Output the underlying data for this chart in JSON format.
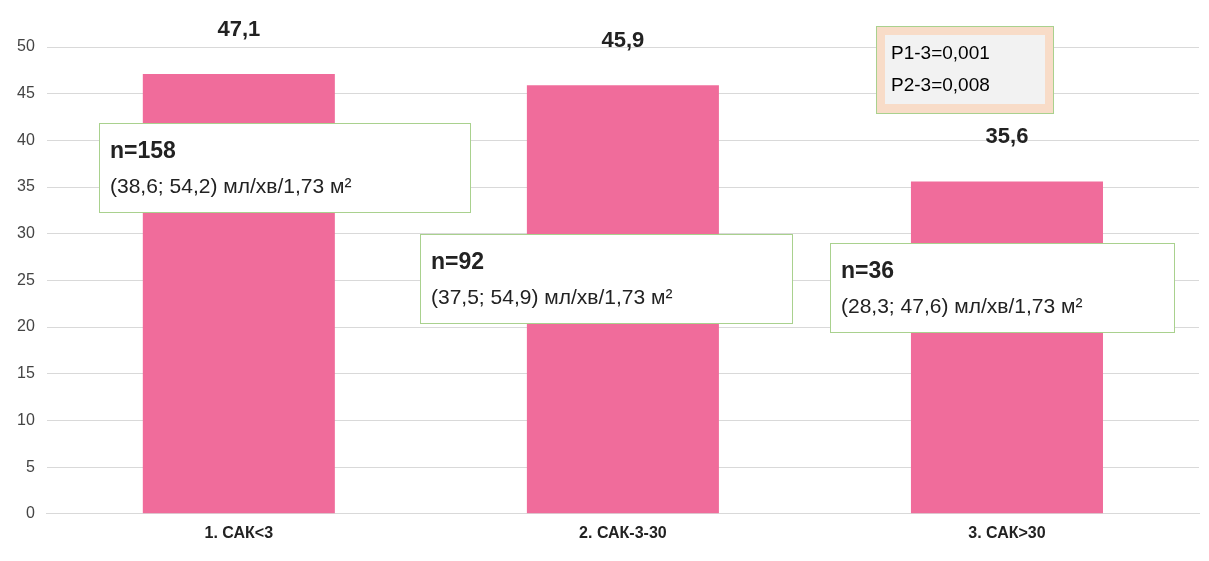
{
  "chart_data": {
    "type": "bar",
    "categories": [
      "1. САК<3",
      "2. САК-3-30",
      "3. САК>30"
    ],
    "values": [
      47.1,
      45.9,
      35.6
    ],
    "value_labels": [
      "47,1",
      "45,9",
      "35,6"
    ],
    "color": "#f06c9b",
    "ylim": [
      0,
      50
    ],
    "yticks": [
      0,
      5,
      10,
      15,
      20,
      25,
      30,
      35,
      40,
      45,
      50
    ],
    "grid": "y",
    "legend": false,
    "annotations": [
      "n=158\n(38,6; 54,2) мл/хв/1,73 м²",
      "n=92\n(37,5; 54,9) мл/хв/1,73 м²",
      "n=36\n(28,3; 47,6) мл/хв/1,73 м²",
      "P1-3=0,001\nP2-3=0,008"
    ]
  }
}
